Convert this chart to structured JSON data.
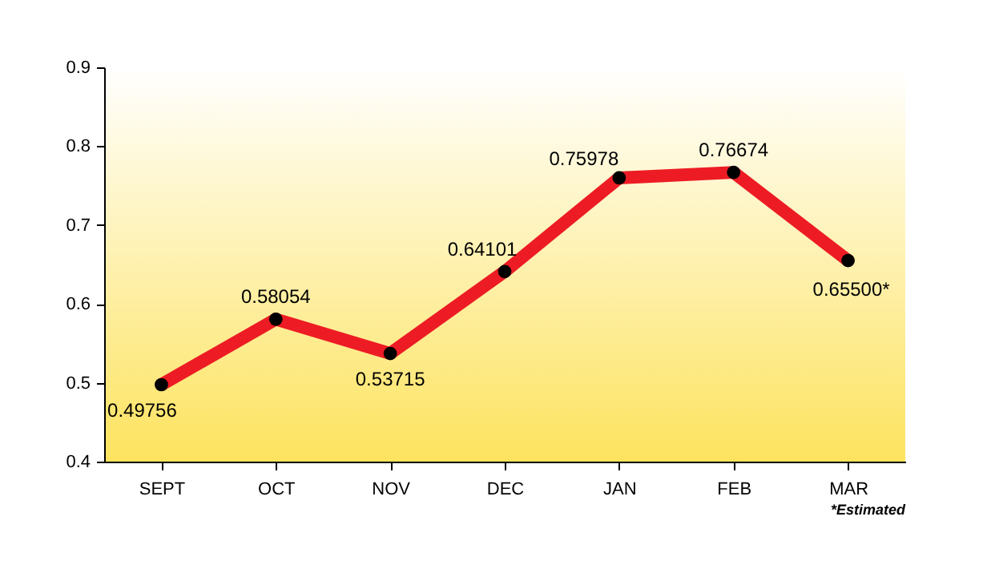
{
  "chart_data": {
    "type": "line",
    "categories": [
      "SEPT",
      "OCT",
      "NOV",
      "DEC",
      "JAN",
      "FEB",
      "MAR"
    ],
    "series": [
      {
        "color": "#ed1c24",
        "values": [
          0.49756,
          0.58054,
          0.53715,
          0.64101,
          0.75978,
          0.76674,
          0.655
        ],
        "value_labels": [
          "0.49756",
          "0.58054",
          "0.53715",
          "0.64101",
          "0.75978",
          "0.76674",
          "0.65500*"
        ]
      }
    ],
    "ylim": [
      0.4,
      0.9
    ],
    "yticks": [
      0.4,
      0.5,
      0.6,
      0.7,
      0.8,
      0.9
    ],
    "marker": "circle",
    "line_style": "solid",
    "grid": false,
    "annotations": [
      "*Estimated"
    ]
  }
}
